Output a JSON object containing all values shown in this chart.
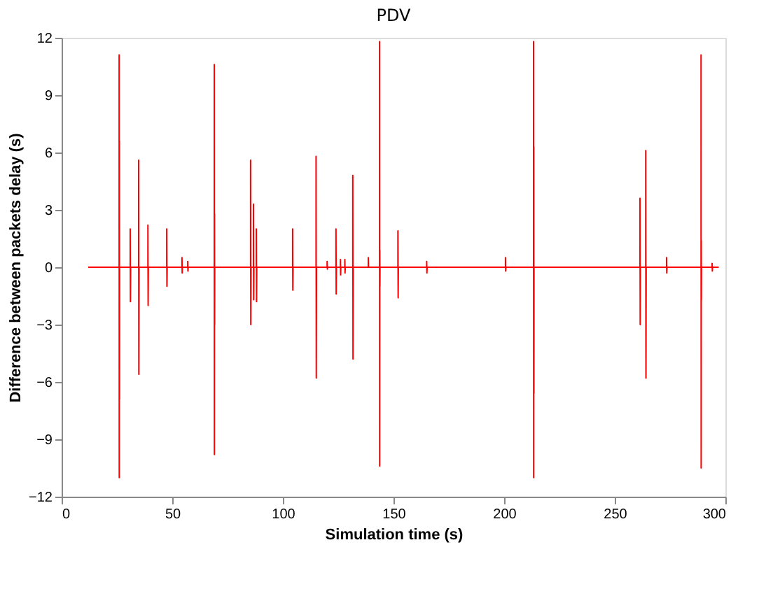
{
  "chart_data": {
    "type": "line",
    "title": "PDV",
    "xlabel": "Simulation time (s)",
    "ylabel": "Difference between packets delay (s)",
    "xlim": [
      0,
      300
    ],
    "xticks": [
      0,
      50,
      100,
      150,
      200,
      250,
      300
    ],
    "ylim": [
      -12,
      12
    ],
    "yticks": [
      -12,
      -9,
      -6,
      -3,
      0,
      3,
      6,
      9,
      12
    ],
    "grid": false,
    "legend": false,
    "marker": "none",
    "line_style": "solid",
    "x": [
      12,
      26,
      26,
      26.05,
      26.1,
      26.15,
      26.2,
      31,
      31,
      31.1,
      31.2,
      34.8,
      34.8,
      34.9,
      35,
      39,
      39,
      39.1,
      39.2,
      47.5,
      47.5,
      47.6,
      47.7,
      54.4,
      54.4,
      54.5,
      54.6,
      57,
      57,
      57.1,
      57.2,
      69,
      69,
      69.05,
      69.1,
      69.15,
      69.2,
      85.4,
      85.4,
      85.5,
      85.6,
      86.7,
      86.7,
      86.8,
      86.9,
      88,
      88,
      88.1,
      88.2,
      104.4,
      104.4,
      104.5,
      104.6,
      115,
      115,
      115.1,
      115.2,
      120,
      120,
      120.1,
      120.2,
      124,
      124,
      124.1,
      124.2,
      126,
      126,
      126.1,
      126.2,
      128,
      128,
      128.1,
      128.2,
      131.6,
      131.6,
      131.7,
      131.8,
      138.6,
      138.6,
      138.7,
      143.7,
      143.7,
      143.75,
      143.8,
      143.85,
      143.9,
      152,
      152,
      152.1,
      152.2,
      165,
      165,
      165.1,
      165.2,
      200.6,
      200.6,
      200.7,
      200.8,
      213.3,
      213.3,
      213.35,
      213.4,
      213.45,
      213.5,
      261.4,
      261.4,
      261.5,
      261.6,
      264,
      264,
      264.1,
      264.2,
      273.4,
      273.4,
      273.5,
      273.6,
      289,
      289,
      289.05,
      289.1,
      289.15,
      289.2,
      294,
      294,
      294.1,
      294.2,
      297
    ],
    "series": [
      {
        "color": "#ff0000",
        "values": [
          0,
          0,
          11.1,
          -11.0,
          6.6,
          -6.9,
          0,
          0,
          2.0,
          -1.8,
          0,
          0,
          5.6,
          -5.6,
          0,
          0,
          2.2,
          -2.0,
          0,
          0,
          2.0,
          -1.0,
          0,
          0,
          0.5,
          -0.3,
          0,
          0,
          0.3,
          -0.2,
          0,
          0,
          10.6,
          -9.8,
          2.8,
          -3.0,
          0,
          0,
          5.6,
          -3.0,
          0,
          0,
          3.3,
          -1.7,
          0,
          0,
          2.0,
          -1.8,
          0,
          0,
          2.0,
          -1.2,
          0,
          0,
          5.8,
          -5.8,
          0,
          0,
          0.3,
          -0.1,
          0,
          0,
          2.0,
          -1.4,
          0,
          0,
          0.4,
          -0.4,
          0,
          0,
          0.4,
          -0.3,
          0,
          0,
          4.8,
          -4.8,
          0,
          0,
          0.5,
          0,
          0,
          11.8,
          -10.4,
          0.9,
          -1.0,
          0,
          0,
          1.9,
          -1.6,
          0,
          0,
          0.3,
          -0.3,
          0,
          0,
          0.5,
          -0.2,
          0,
          0,
          11.8,
          -11.0,
          6.3,
          -6.6,
          0,
          0,
          3.6,
          -3.0,
          0,
          0,
          6.1,
          -5.8,
          0,
          0,
          0.5,
          -0.3,
          0,
          0,
          11.1,
          -10.5,
          1.4,
          -1.7,
          0,
          0,
          0.2,
          -0.2,
          0,
          0
        ]
      }
    ]
  }
}
